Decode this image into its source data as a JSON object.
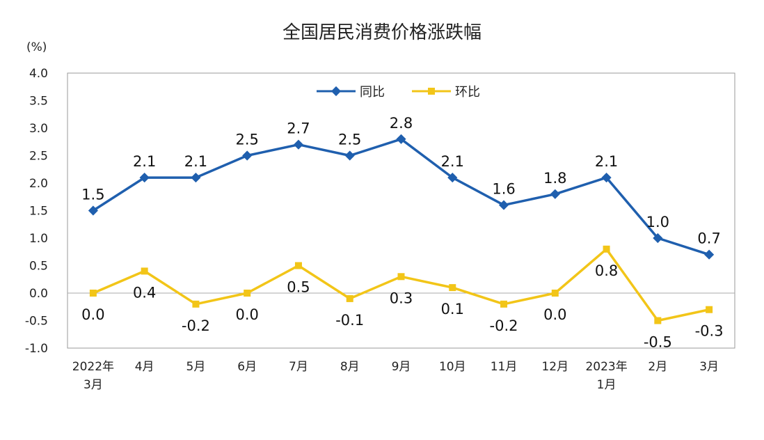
{
  "chart_data": {
    "type": "line",
    "title": "全国居民消费价格涨跌幅",
    "ylabel": "(%)",
    "ylim": [
      -1.0,
      4.0
    ],
    "yticks": [
      "4.0",
      "3.5",
      "3.0",
      "2.5",
      "2.0",
      "1.5",
      "1.0",
      "0.5",
      "0.0",
      "-0.5",
      "-1.0"
    ],
    "categories": [
      [
        "2022年",
        "3月"
      ],
      [
        "4月"
      ],
      [
        "5月"
      ],
      [
        "6月"
      ],
      [
        "7月"
      ],
      [
        "8月"
      ],
      [
        "9月"
      ],
      [
        "10月"
      ],
      [
        "11月"
      ],
      [
        "12月"
      ],
      [
        "2023年",
        "1月"
      ],
      [
        "2月"
      ],
      [
        "3月"
      ]
    ],
    "grid": false,
    "legend": "top-center",
    "series": [
      {
        "name": "同比",
        "color": "#1f5fae",
        "marker": "diamond",
        "values": [
          1.5,
          2.1,
          2.1,
          2.5,
          2.7,
          2.5,
          2.8,
          2.1,
          1.6,
          1.8,
          2.1,
          1.0,
          0.7
        ],
        "labels": [
          "1.5",
          "2.1",
          "2.1",
          "2.5",
          "2.7",
          "2.5",
          "2.8",
          "2.1",
          "1.6",
          "1.8",
          "2.1",
          "1.0",
          "0.7"
        ]
      },
      {
        "name": "环比",
        "color": "#f2c518",
        "marker": "square",
        "values": [
          0.0,
          0.4,
          -0.2,
          0.0,
          0.5,
          -0.1,
          0.3,
          0.1,
          -0.2,
          0.0,
          0.8,
          -0.5,
          -0.3
        ],
        "labels": [
          "0.0",
          "0.4",
          "-0.2",
          "0.0",
          "0.5",
          "-0.1",
          "0.3",
          "0.1",
          "-0.2",
          "0.0",
          "0.8",
          "-0.5",
          "-0.3"
        ]
      }
    ]
  }
}
